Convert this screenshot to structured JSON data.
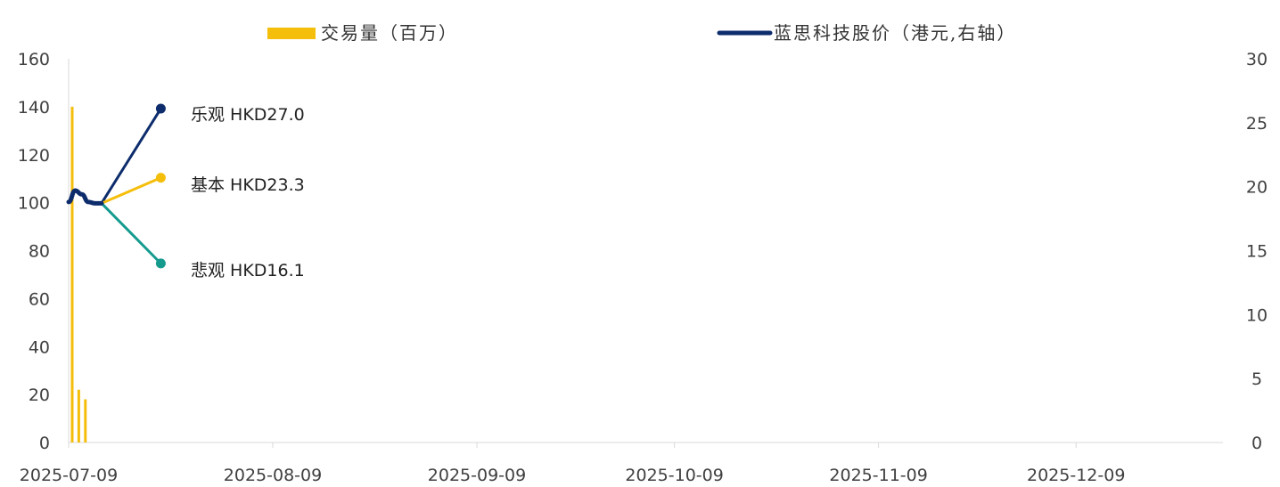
{
  "chart_data": {
    "type": "bar+line",
    "x_ticks": [
      "2025-07-09",
      "2025-08-09",
      "2025-09-09",
      "2025-10-09",
      "2025-11-09",
      "2025-12-09"
    ],
    "x_range": [
      "2025-07-09",
      "2026-01-01"
    ],
    "y_left": {
      "ticks": [
        "0",
        "20",
        "40",
        "60",
        "80",
        "100",
        "120",
        "140",
        "160"
      ],
      "min": 0,
      "max": 160
    },
    "y_right": {
      "ticks": [
        "0",
        "5",
        "10",
        "15",
        "20",
        "25",
        "30"
      ],
      "min": 0,
      "max": 30
    },
    "legend": [
      {
        "name": "交易量（百万）",
        "color": "#F5BE0B",
        "kind": "bar"
      },
      {
        "name": "蓝思科技股价（港元,右轴）",
        "color": "#0D2C6C",
        "kind": "line"
      }
    ],
    "series": [
      {
        "name": "交易量（百万）",
        "axis": "left",
        "type": "bar",
        "color": "#F5BE0B",
        "points": [
          {
            "x": "2025-07-09",
            "y": 140
          },
          {
            "x": "2025-07-10",
            "y": 22
          },
          {
            "x": "2025-07-11",
            "y": 18
          }
        ]
      },
      {
        "name": "蓝思科技股价（港元,右轴）",
        "axis": "right",
        "type": "line",
        "color": "#0D2C6C",
        "points": [
          {
            "x": "2025-07-09",
            "y": 18.8
          },
          {
            "x": "2025-07-10",
            "y": 19.7
          },
          {
            "x": "2025-07-11",
            "y": 19.4
          },
          {
            "x": "2025-07-12",
            "y": 18.8
          },
          {
            "x": "2025-07-13",
            "y": 18.7
          },
          {
            "x": "2025-07-14",
            "y": 18.7
          }
        ]
      }
    ],
    "scenarios": [
      {
        "label": "乐观 HKD27.0",
        "color": "#0D2C6C",
        "from": {
          "x": "2025-07-14",
          "y": 18.7
        },
        "to": {
          "x": "2025-07-23",
          "y": 26.1
        }
      },
      {
        "label": "基本 HKD23.3",
        "color": "#F5BE0B",
        "from": {
          "x": "2025-07-14",
          "y": 18.7
        },
        "to": {
          "x": "2025-07-23",
          "y": 20.7
        }
      },
      {
        "label": "悲观 HKD16.1",
        "color": "#159B8E",
        "from": {
          "x": "2025-07-14",
          "y": 18.7
        },
        "to": {
          "x": "2025-07-23",
          "y": 14.0
        }
      }
    ],
    "grid": false
  }
}
